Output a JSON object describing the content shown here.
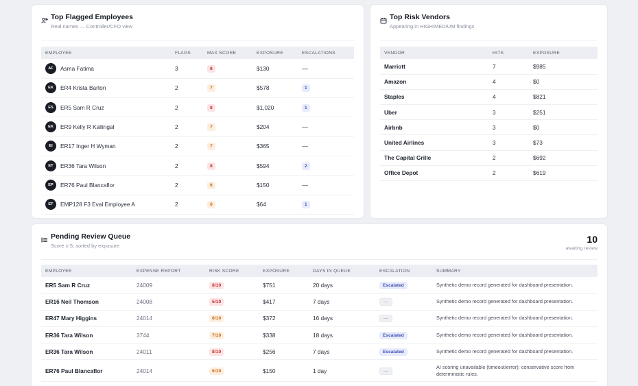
{
  "employees_card": {
    "title": "Top Flagged Employees",
    "subtitle": "Real names — Controller/CFO view",
    "icon": "user-flag-icon",
    "columns": [
      "EMPLOYEE",
      "FLAGS",
      "MAX SCORE",
      "EXPOSURE",
      "ESCALATIONS"
    ],
    "rows": [
      {
        "initials": "AF",
        "name": "Asma Fatima",
        "flags": "3",
        "max_score": "8",
        "score_level": "red",
        "exposure": "$130",
        "escalations": "—"
      },
      {
        "initials": "EK",
        "name": "ER4 Krista Barton",
        "flags": "2",
        "max_score": "7",
        "score_level": "orange",
        "exposure": "$578",
        "escalations": "1"
      },
      {
        "initials": "ES",
        "name": "ER5 Sam R Cruz",
        "flags": "2",
        "max_score": "8",
        "score_level": "red",
        "exposure": "$1,020",
        "escalations": "1"
      },
      {
        "initials": "EK",
        "name": "ER9 Kelly R Kallingal",
        "flags": "2",
        "max_score": "7",
        "score_level": "orange",
        "exposure": "$204",
        "escalations": "—"
      },
      {
        "initials": "EI",
        "name": "ER17 Inger H Wyman",
        "flags": "2",
        "max_score": "7",
        "score_level": "orange",
        "exposure": "$365",
        "escalations": "—"
      },
      {
        "initials": "ET",
        "name": "ER36 Tara Wilson",
        "flags": "2",
        "max_score": "8",
        "score_level": "red",
        "exposure": "$594",
        "escalations": "2"
      },
      {
        "initials": "EP",
        "name": "ER76 Paul Blancaflor",
        "flags": "2",
        "max_score": "6",
        "score_level": "orange",
        "exposure": "$150",
        "escalations": "—"
      },
      {
        "initials": "EF",
        "name": "EMP128 F3 Eval Employee A",
        "flags": "2",
        "max_score": "6",
        "score_level": "orange",
        "exposure": "$64",
        "escalations": "1"
      }
    ]
  },
  "vendors_card": {
    "title": "Top Risk Vendors",
    "subtitle": "Appearing in HIGH/MEDIUM findings",
    "icon": "calendar-store-icon",
    "columns": [
      "VENDOR",
      "HITS",
      "EXPOSURE"
    ],
    "rows": [
      {
        "vendor": "Marriott",
        "hits": "7",
        "exposure": "$985"
      },
      {
        "vendor": "Amazon",
        "hits": "4",
        "exposure": "$0"
      },
      {
        "vendor": "Staples",
        "hits": "4",
        "exposure": "$821"
      },
      {
        "vendor": "Uber",
        "hits": "3",
        "exposure": "$251"
      },
      {
        "vendor": "Airbnb",
        "hits": "3",
        "exposure": "$0"
      },
      {
        "vendor": "United Airlines",
        "hits": "3",
        "exposure": "$73"
      },
      {
        "vendor": "The Capital Grille",
        "hits": "2",
        "exposure": "$692"
      },
      {
        "vendor": "Office Depot",
        "hits": "2",
        "exposure": "$619"
      }
    ]
  },
  "queue_card": {
    "title": "Pending Review Queue",
    "subtitle": "Score ≥ 5, sorted by exposure",
    "icon": "list-icon",
    "count": "10",
    "count_label": "awaiting review",
    "columns": [
      "EMPLOYEE",
      "EXPENSE REPORT",
      "RISK SCORE",
      "EXPOSURE",
      "DAYS IN QUEUE",
      "ESCALATION",
      "SUMMARY"
    ],
    "rows": [
      {
        "employee": "ER5 Sam R Cruz",
        "report": "24009",
        "risk": "8/10",
        "risk_level": "red",
        "exposure": "$751",
        "days": "20 days",
        "escalation": "Escalated",
        "summary": "Synthetic demo record generated for dashboard presentation."
      },
      {
        "employee": "ER16 Neil Thomson",
        "report": "24008",
        "risk": "5/10",
        "risk_level": "red",
        "exposure": "$417",
        "days": "7 days",
        "escalation": "—",
        "summary": "Synthetic demo record generated for dashboard presentation."
      },
      {
        "employee": "ER47 Mary Higgins",
        "report": "24014",
        "risk": "6/10",
        "risk_level": "orange",
        "exposure": "$372",
        "days": "16 days",
        "escalation": "—",
        "summary": "Synthetic demo record generated for dashboard presentation."
      },
      {
        "employee": "ER36 Tara Wilson",
        "report": "3744",
        "risk": "7/10",
        "risk_level": "orange",
        "exposure": "$338",
        "days": "18 days",
        "escalation": "Escalated",
        "summary": "Synthetic demo record generated for dashboard presentation."
      },
      {
        "employee": "ER36 Tara Wilson",
        "report": "24011",
        "risk": "8/10",
        "risk_level": "red",
        "exposure": "$256",
        "days": "7 days",
        "escalation": "Escalated",
        "summary": "Synthetic demo record generated for dashboard presentation."
      },
      {
        "employee": "ER76 Paul Blancaflor",
        "report": "24014",
        "risk": "6/10",
        "risk_level": "orange",
        "exposure": "$150",
        "days": "1 day",
        "escalation": "—",
        "summary": "AI scoring unavailable (timeout/error); conservative score from deterministic rules."
      }
    ]
  },
  "colors": {
    "score_red_bg": "#fde4e4",
    "score_red_text": "#c62f2f",
    "score_orange_bg": "#fdeede",
    "score_orange_text": "#c86a17",
    "escalated_bg": "#e7ebfb",
    "escalated_text": "#4252b3"
  }
}
